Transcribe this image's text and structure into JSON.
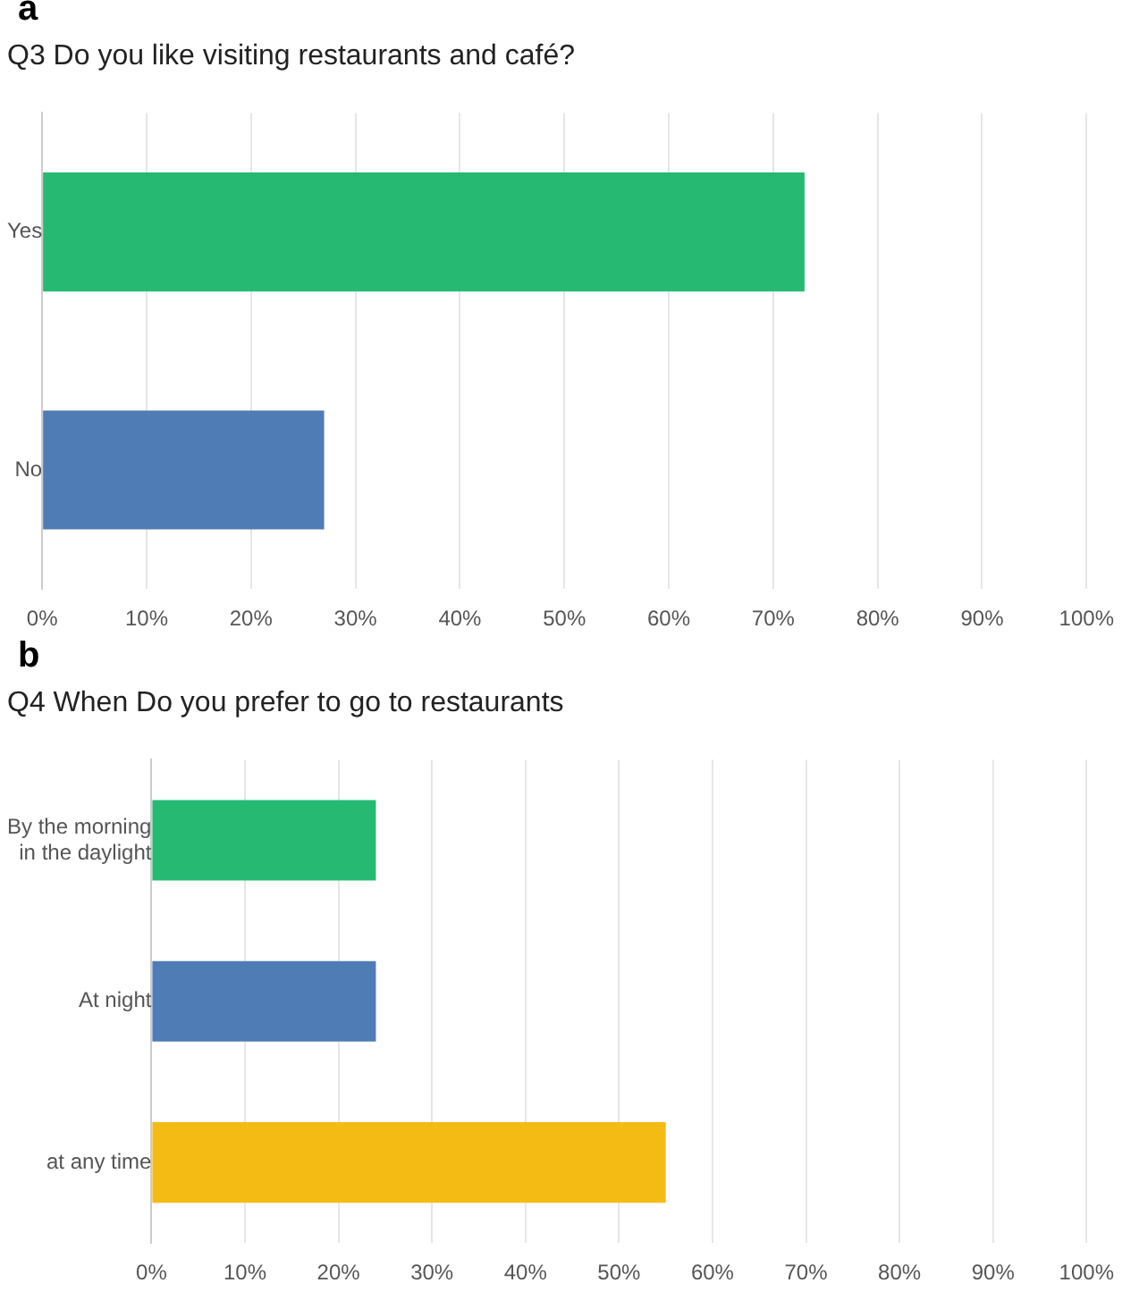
{
  "chart_data": [
    {
      "type": "bar",
      "orientation": "horizontal",
      "title": "Q3 Do you like visiting restaurants and café?",
      "annotations": [
        "a"
      ],
      "categories": [
        "Yes",
        "No"
      ],
      "values": [
        73,
        27
      ],
      "colors": [
        "#25b972",
        "#507cb6"
      ],
      "xlim": [
        0,
        100
      ],
      "xticks": [
        {
          "value": 0,
          "label": "0%"
        },
        {
          "value": 10,
          "label": "10%"
        },
        {
          "value": 20,
          "label": "20%"
        },
        {
          "value": 30,
          "label": "30%"
        },
        {
          "value": 40,
          "label": "40%"
        },
        {
          "value": 50,
          "label": "50%"
        },
        {
          "value": 60,
          "label": "60%"
        },
        {
          "value": 70,
          "label": "70%"
        },
        {
          "value": 80,
          "label": "80%"
        },
        {
          "value": 90,
          "label": "90%"
        },
        {
          "value": 100,
          "label": "100%"
        }
      ],
      "grid": "x",
      "legend": false
    },
    {
      "type": "bar",
      "orientation": "horizontal",
      "title": "Q4 When Do you prefer to go to restaurants",
      "annotations": [
        "b"
      ],
      "categories": [
        "By the morning in the daylight",
        "At night",
        "at any time"
      ],
      "values": [
        24,
        24,
        55
      ],
      "colors": [
        "#25b972",
        "#507cb6",
        "#f5bb15"
      ],
      "xlim": [
        0,
        100
      ],
      "xticks": [
        {
          "value": 0,
          "label": "0%"
        },
        {
          "value": 10,
          "label": "10%"
        },
        {
          "value": 20,
          "label": "20%"
        },
        {
          "value": 30,
          "label": "30%"
        },
        {
          "value": 40,
          "label": "40%"
        },
        {
          "value": 50,
          "label": "50%"
        },
        {
          "value": 60,
          "label": "60%"
        },
        {
          "value": 70,
          "label": "70%"
        },
        {
          "value": 80,
          "label": "80%"
        },
        {
          "value": 90,
          "label": "90%"
        },
        {
          "value": 100,
          "label": "100%"
        }
      ],
      "grid": "x",
      "legend": false
    }
  ]
}
